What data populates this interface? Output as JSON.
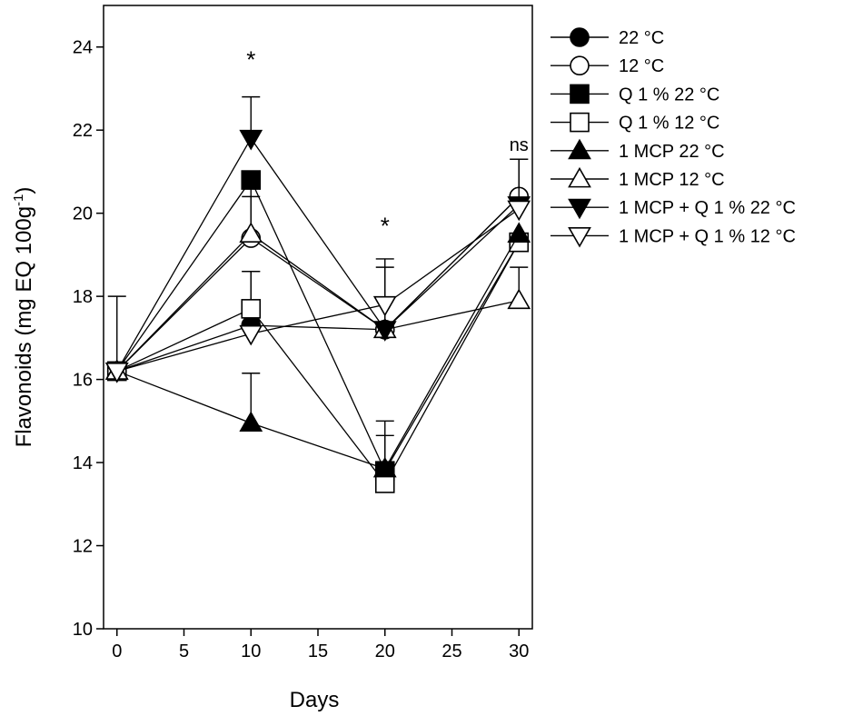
{
  "chart_data": {
    "type": "line",
    "xlabel": "Days",
    "ylabel": "Flavonoids (mg EQ 100g",
    "ylabel_sup": "-1",
    "ylabel_close": ")",
    "xlim": [
      -1,
      31
    ],
    "ylim": [
      10,
      25
    ],
    "xticks": [
      0,
      5,
      10,
      15,
      20,
      25,
      30
    ],
    "yticks": [
      10,
      12,
      14,
      16,
      18,
      20,
      22,
      24
    ],
    "x": [
      0,
      10,
      20,
      30
    ],
    "series": [
      {
        "name": "22 °C",
        "marker": "circle",
        "fill": "black",
        "values": [
          16.2,
          17.3,
          17.2,
          20.4
        ],
        "err": [
          0,
          1.3,
          0,
          0
        ]
      },
      {
        "name": "12 °C",
        "marker": "circle",
        "fill": "white",
        "values": [
          16.2,
          19.4,
          17.2,
          20.4
        ],
        "err": [
          0,
          1.2,
          0,
          0.9
        ]
      },
      {
        "name": "Q 1 % 22 °C",
        "marker": "square",
        "fill": "black",
        "values": [
          16.2,
          20.8,
          13.8,
          19.3
        ],
        "err": [
          0,
          0,
          1.2,
          0
        ]
      },
      {
        "name": "Q 1 % 12 °C",
        "marker": "square",
        "fill": "white",
        "values": [
          16.2,
          17.7,
          13.5,
          19.3
        ],
        "err": [
          0,
          0.9,
          0,
          0
        ]
      },
      {
        "name": "1 MCP 22 °C",
        "marker": "triangle-up",
        "fill": "black",
        "values": [
          16.2,
          14.95,
          13.85,
          19.5
        ],
        "err": [
          0,
          1.2,
          0.8,
          0
        ]
      },
      {
        "name": "1 MCP 12 °C",
        "marker": "triangle-up",
        "fill": "white",
        "values": [
          16.2,
          19.5,
          17.2,
          17.9
        ],
        "err": [
          1.8,
          0.9,
          1.5,
          0.8
        ]
      },
      {
        "name": "1 MCP + Q 1 % 22 °C",
        "marker": "triangle-down",
        "fill": "black",
        "values": [
          16.2,
          21.8,
          17.2,
          20.2
        ],
        "err": [
          0,
          1.0,
          1.7,
          0
        ]
      },
      {
        "name": "1 MCP + Q 1 % 12 °C",
        "marker": "triangle-down",
        "fill": "white",
        "values": [
          16.2,
          17.1,
          17.8,
          20.1
        ],
        "err": [
          0,
          0,
          0,
          1.2
        ]
      }
    ],
    "annotations": [
      {
        "text": "*",
        "x": 10,
        "y": 23.5
      },
      {
        "text": "*",
        "x": 20,
        "y": 19.5
      },
      {
        "text": "ns",
        "x": 30,
        "y": 21.5
      }
    ]
  }
}
